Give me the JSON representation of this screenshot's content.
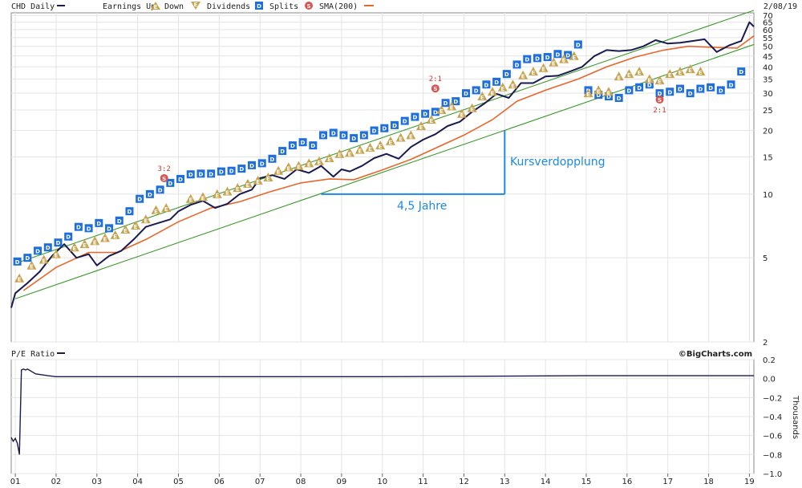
{
  "chart_data": [
    {
      "type": "line",
      "title": "CHD Daily",
      "date_label": "2/08/19",
      "scale": "log",
      "ylim": [
        2,
        72
      ],
      "y_ticks": [
        "70",
        "65",
        "60",
        "55",
        "50",
        "45",
        "40",
        "35",
        "30",
        "25",
        "20",
        "15",
        "10",
        "5",
        "2"
      ],
      "y_tick_values": [
        70,
        65,
        60,
        55,
        50,
        45,
        40,
        35,
        30,
        25,
        20,
        15,
        10,
        5,
        2
      ],
      "x_ticks": [
        "01",
        "02",
        "03",
        "04",
        "05",
        "06",
        "07",
        "08",
        "09",
        "10",
        "11",
        "12",
        "13",
        "14",
        "15",
        "16",
        "17",
        "18",
        "19"
      ],
      "legend": {
        "earnings_up": "Earnings Up",
        "down": "Down",
        "dividends": "Dividends",
        "splits": "Splits",
        "sma": "SMA(200)"
      },
      "series": [
        {
          "name": "CHD Daily",
          "color": "#1a1a4e",
          "x": [
            2000.9,
            2001.0,
            2001.3,
            2001.6,
            2001.9,
            2002.2,
            2002.5,
            2002.8,
            2003.0,
            2003.3,
            2003.6,
            2003.9,
            2004.2,
            2004.5,
            2004.8,
            2005.0,
            2005.3,
            2005.6,
            2005.9,
            2006.2,
            2006.5,
            2006.8,
            2007.0,
            2007.3,
            2007.6,
            2007.9,
            2008.2,
            2008.5,
            2008.8,
            2009.0,
            2009.2,
            2009.5,
            2009.8,
            2010.1,
            2010.4,
            2010.7,
            2011.0,
            2011.3,
            2011.6,
            2011.9,
            2012.2,
            2012.5,
            2012.8,
            2013.1,
            2013.4,
            2013.7,
            2014.0,
            2014.3,
            2014.6,
            2014.9,
            2015.2,
            2015.5,
            2015.8,
            2016.1,
            2016.4,
            2016.7,
            2017.0,
            2017.3,
            2017.6,
            2017.9,
            2018.2,
            2018.5,
            2018.8,
            2019.0,
            2019.11
          ],
          "values": [
            2.9,
            3.4,
            3.8,
            4.3,
            5.1,
            5.8,
            5.0,
            5.2,
            4.6,
            5.1,
            5.4,
            6.1,
            7.0,
            7.3,
            7.6,
            8.3,
            8.9,
            9.3,
            8.6,
            9.0,
            10.0,
            10.5,
            11.9,
            12.3,
            11.8,
            13.1,
            12.6,
            13.6,
            12.1,
            13.1,
            12.8,
            13.6,
            14.8,
            15.5,
            14.7,
            16.7,
            18.1,
            19.2,
            21.0,
            22.0,
            24.5,
            26.8,
            29.8,
            28.5,
            33.5,
            33.5,
            36.0,
            36.3,
            38.0,
            40.0,
            45.0,
            48.0,
            47.5,
            48.0,
            50.0,
            53.5,
            51.5,
            52.0,
            53.0,
            54.0,
            47.0,
            50.5,
            53.0,
            65.0,
            62.0
          ]
        },
        {
          "name": "SMA(200)",
          "color": "#e8662a",
          "x": [
            2001.2,
            2002.0,
            2002.8,
            2003.5,
            2004.2,
            2005.0,
            2005.8,
            2006.5,
            2007.2,
            2008.0,
            2008.7,
            2009.3,
            2010.0,
            2010.7,
            2011.3,
            2012.0,
            2012.7,
            2013.3,
            2014.0,
            2014.8,
            2015.5,
            2016.2,
            2016.9,
            2017.5,
            2018.1,
            2018.7,
            2019.11
          ],
          "values": [
            3.5,
            4.5,
            5.3,
            5.3,
            6.1,
            7.4,
            8.6,
            9.2,
            10.2,
            11.3,
            11.8,
            11.7,
            13.0,
            14.6,
            16.5,
            19.0,
            22.5,
            27.5,
            31.0,
            35.0,
            40.0,
            44.5,
            48.0,
            50.0,
            49.5,
            49.0,
            56.0
          ]
        }
      ],
      "trend_channel": {
        "upper": {
          "x": [
            2001.0,
            2019.11
          ],
          "values": [
            4.7,
            74
          ]
        },
        "lower": {
          "x": [
            2001.0,
            2019.11
          ],
          "values": [
            3.2,
            51
          ]
        }
      },
      "annotations": {
        "doubling_label": "Kursverdopplung",
        "period_label": "4,5 Jahre",
        "doubling_line": {
          "x": 2013.0,
          "from": 10,
          "to": 20
        },
        "period_line": {
          "from": 2008.5,
          "to": 2013.0,
          "y": 10
        }
      },
      "markers": {
        "dividends": {
          "color": "#1e6fdc",
          "letter": "D",
          "x": [
            2001.05,
            2001.3,
            2001.55,
            2001.8,
            2002.05,
            2002.3,
            2002.55,
            2002.8,
            2003.05,
            2003.3,
            2003.55,
            2003.8,
            2004.05,
            2004.3,
            2004.55,
            2004.8,
            2005.05,
            2005.3,
            2005.55,
            2005.8,
            2006.05,
            2006.3,
            2006.55,
            2006.8,
            2007.05,
            2007.3,
            2007.55,
            2007.8,
            2008.05,
            2008.3,
            2008.55,
            2008.8,
            2009.05,
            2009.3,
            2009.55,
            2009.8,
            2010.05,
            2010.3,
            2010.55,
            2010.8,
            2011.05,
            2011.3,
            2011.55,
            2011.8,
            2012.05,
            2012.3,
            2012.55,
            2012.8,
            2013.05,
            2013.3,
            2013.55,
            2013.8,
            2014.05,
            2014.3,
            2014.55,
            2014.8,
            2015.05,
            2015.3,
            2015.55,
            2015.8,
            2016.05,
            2016.3,
            2016.55,
            2016.8,
            2017.05,
            2017.3,
            2017.55,
            2017.8,
            2018.05,
            2018.3,
            2018.55,
            2018.8
          ],
          "values": [
            4.8,
            5.0,
            5.4,
            5.6,
            5.9,
            6.3,
            7.0,
            6.9,
            7.3,
            6.9,
            7.5,
            8.3,
            9.5,
            10.0,
            10.5,
            11.3,
            11.8,
            12.4,
            12.5,
            12.5,
            12.8,
            12.9,
            13.2,
            13.7,
            14.0,
            14.7,
            16.0,
            17.0,
            17.6,
            17.0,
            19.0,
            19.5,
            19.0,
            18.4,
            19.0,
            20.0,
            20.5,
            21.2,
            22.2,
            23.2,
            24.0,
            24.5,
            27.0,
            27.5,
            30.0,
            31.0,
            33.0,
            34.0,
            37.0,
            41.0,
            43.5,
            44.0,
            44.5,
            46.0,
            45.5,
            51.0,
            31.0,
            29.5,
            29.0,
            28.5,
            31.0,
            32.0,
            33.0,
            30.0,
            30.5,
            31.5,
            30.0,
            31.5,
            32.0,
            31.0,
            33.0,
            38.0
          ]
        },
        "earnings": {
          "color": "#c9a24e",
          "letter": "E",
          "x": [
            2001.1,
            2001.4,
            2001.7,
            2002.0,
            2002.45,
            2002.7,
            2002.95,
            2003.2,
            2003.45,
            2003.7,
            2003.95,
            2004.2,
            2004.45,
            2004.7,
            2005.3,
            2005.6,
            2005.95,
            2006.2,
            2006.45,
            2006.7,
            2006.95,
            2007.2,
            2007.45,
            2007.7,
            2007.95,
            2008.2,
            2008.45,
            2008.7,
            2008.95,
            2009.2,
            2009.45,
            2009.7,
            2009.95,
            2010.2,
            2010.45,
            2010.7,
            2010.95,
            2011.2,
            2011.45,
            2011.7,
            2011.95,
            2012.2,
            2012.45,
            2012.7,
            2012.95,
            2013.2,
            2013.45,
            2013.7,
            2013.95,
            2014.2,
            2014.45,
            2014.7,
            2015.05,
            2015.3,
            2015.55,
            2015.8,
            2016.05,
            2016.3,
            2016.55,
            2016.8,
            2017.05,
            2017.3,
            2017.55,
            2017.8
          ],
          "values": [
            4.0,
            4.6,
            4.9,
            5.2,
            5.6,
            5.8,
            6.0,
            6.2,
            6.4,
            6.8,
            7.1,
            7.6,
            8.4,
            8.6,
            9.5,
            9.7,
            10.0,
            10.3,
            10.7,
            11.2,
            11.6,
            12.0,
            12.9,
            13.4,
            13.6,
            14.0,
            14.3,
            14.8,
            15.5,
            15.7,
            16.2,
            16.6,
            17.0,
            17.8,
            18.5,
            19.0,
            21.0,
            22.5,
            25.0,
            26.0,
            24.0,
            25.5,
            29.0,
            30.5,
            32.0,
            33.0,
            36.5,
            38.0,
            39.5,
            42.0,
            43.5,
            45.0,
            30.0,
            31.0,
            30.5,
            36.0,
            37.0,
            38.0,
            35.0,
            34.5,
            37.0,
            38.0,
            39.0,
            38.0
          ]
        },
        "splits": {
          "color": "#d9534f",
          "letter": "S",
          "items": [
            {
              "x": 2004.65,
              "value": 11.9,
              "ratio": "3:2"
            },
            {
              "x": 2011.3,
              "value": 31.6,
              "ratio": "2:1"
            },
            {
              "x": 2016.8,
              "value": 28.0,
              "ratio": "2:1"
            }
          ]
        }
      }
    },
    {
      "type": "line",
      "title": "P/E Ratio",
      "y_unit_label": "Thousands",
      "ylim": [
        -1.0,
        0.2
      ],
      "y_ticks": [
        "0.2",
        "0.0",
        "−0.2",
        "−0.4",
        "−0.6",
        "−0.8",
        "−1.0"
      ],
      "y_tick_values": [
        0.2,
        0.0,
        -0.2,
        -0.4,
        -0.6,
        -0.8,
        -1.0
      ],
      "series": [
        {
          "name": "P/E Ratio",
          "color": "#1a1a4e",
          "x": [
            2000.9,
            2000.95,
            2001.0,
            2001.05,
            2001.1,
            2001.15,
            2001.2,
            2001.25,
            2001.3,
            2001.5,
            2001.8,
            2002.0,
            2005.0,
            2010.0,
            2015.0,
            2019.11
          ],
          "values": [
            -0.62,
            -0.66,
            -0.63,
            -0.68,
            -0.8,
            0.09,
            0.1,
            0.09,
            0.1,
            0.05,
            0.03,
            0.02,
            0.02,
            0.02,
            0.03,
            0.03
          ]
        }
      ]
    }
  ],
  "credit": "©BigCharts.com"
}
